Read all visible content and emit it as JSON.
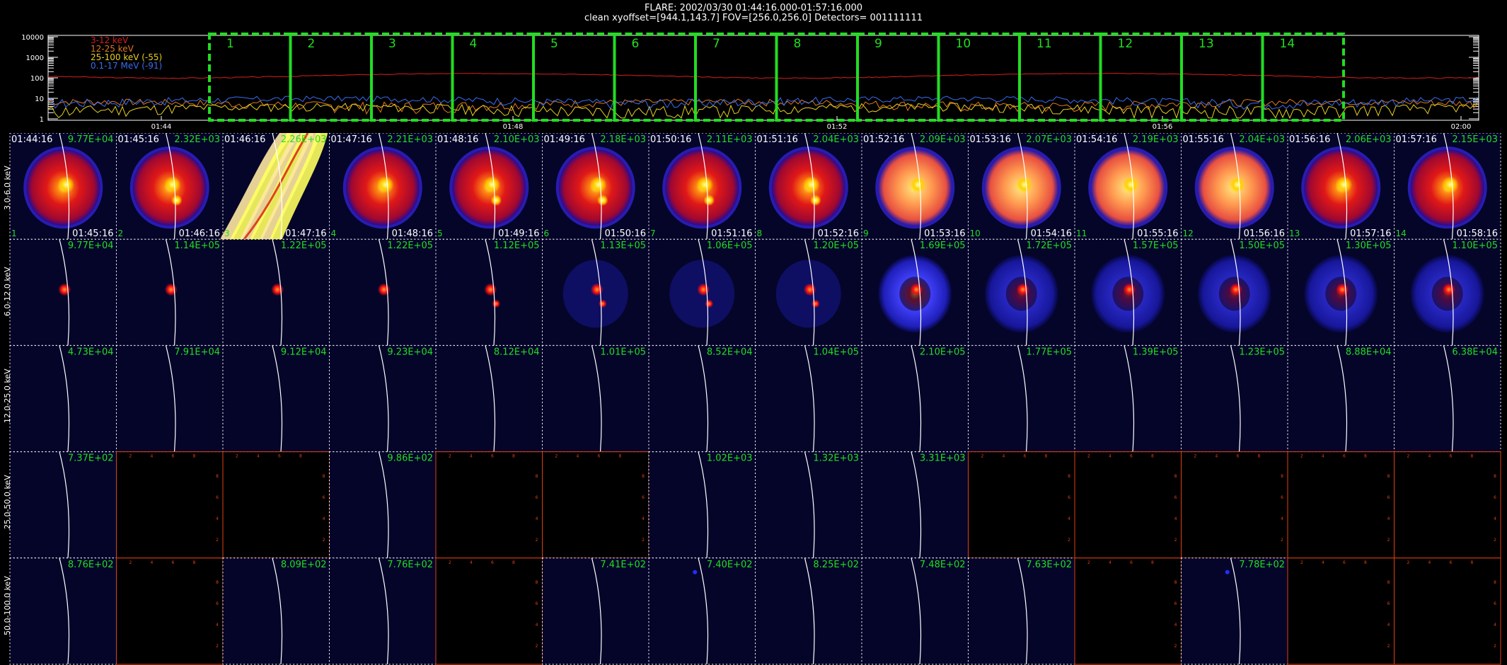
{
  "header": {
    "title": "FLARE: 2002/03/30 01:44:16.000-01:57:16.000",
    "subtitle": "clean    xyoffset=[944.1,143.7]     FOV=[256.0,256.0]     Detectors= 001111111"
  },
  "lightcurve": {
    "y_ticks": [
      "10000",
      "1000",
      "100",
      "10",
      "1"
    ],
    "x_ticks": [
      "01:44",
      "01:48",
      "01:52",
      "01:56",
      "02:00"
    ],
    "legend": [
      {
        "label": "3-12 keV",
        "color": "#d81e1e"
      },
      {
        "label": "12-25 keV",
        "color": "#e07820"
      },
      {
        "label": "25-100 keV (-55)",
        "color": "#e8d020"
      },
      {
        "label": "0.1-17 MeV (-91)",
        "color": "#3a6cf0"
      }
    ],
    "intervals": [
      "1",
      "2",
      "3",
      "4",
      "5",
      "6",
      "7",
      "8",
      "9",
      "10",
      "11",
      "12",
      "13",
      "14"
    ],
    "interval_color": "#22dd22"
  },
  "rows": [
    {
      "label": "3.0-6.0 keV",
      "maxima": [
        "9.77E+04",
        "2.32E+03",
        "2.26E+03",
        "2.21E+03",
        "2.10E+03",
        "2.18E+03",
        "2.11E+03",
        "2.04E+03",
        "2.09E+03",
        "2.07E+03",
        "2.19E+03",
        "2.04E+03",
        "2.06E+03",
        "2.15E+03"
      ]
    },
    {
      "label": "6.0-12.0 keV",
      "maxima": [
        "9.77E+04",
        "1.14E+05",
        "1.22E+05",
        "1.22E+05",
        "1.12E+05",
        "1.13E+05",
        "1.06E+05",
        "1.20E+05",
        "1.69E+05",
        "1.72E+05",
        "1.57E+05",
        "1.50E+05",
        "1.30E+05",
        "1.10E+05"
      ]
    },
    {
      "label": "12.0-25.0 keV",
      "maxima": [
        "4.73E+04",
        "7.91E+04",
        "9.12E+04",
        "9.23E+04",
        "8.12E+04",
        "1.01E+05",
        "8.52E+04",
        "1.04E+05",
        "2.10E+05",
        "1.77E+05",
        "1.39E+05",
        "1.23E+05",
        "8.88E+04",
        "6.38E+04"
      ]
    },
    {
      "label": "25.0-50.0 keV",
      "maxima": [
        "7.37E+02",
        "",
        "",
        "9.86E+02",
        "",
        "",
        "1.02E+03",
        "1.32E+03",
        "3.31E+03",
        "",
        "",
        "",
        "",
        ""
      ]
    },
    {
      "label": "50.0-100.0 keV",
      "maxima": [
        "8.76E+02",
        "",
        "8.09E+02",
        "7.76E+02",
        "",
        "7.41E+02",
        "7.40E+02",
        "8.25E+02",
        "7.48E+02",
        "7.63E+02",
        "",
        "7.78E+02",
        "",
        ""
      ]
    }
  ],
  "start_times": [
    "01:44:16",
    "01:45:16",
    "01:46:16",
    "01:47:16",
    "01:48:16",
    "01:49:16",
    "01:50:16",
    "01:51:16",
    "01:52:16",
    "01:53:16",
    "01:54:16",
    "01:55:16",
    "01:56:16",
    "01:57:16"
  ],
  "end_times": [
    "01:45:16",
    "01:46:16",
    "01:47:16",
    "01:48:16",
    "01:49:16",
    "01:50:16",
    "01:51:16",
    "01:52:16",
    "01:53:16",
    "01:54:16",
    "01:55:16",
    "01:56:16",
    "01:57:16",
    "01:58:16"
  ],
  "panel_numbers": [
    "1",
    "2",
    "3",
    "4",
    "5",
    "6",
    "7",
    "8",
    "9",
    "10",
    "11",
    "12",
    "13",
    "14"
  ],
  "empty_axis_ticks": [
    "2",
    "4",
    "6",
    "8"
  ],
  "colors": {
    "label_green": "#22dd22",
    "axis_orange": "#e04010",
    "limb": "#ffffff",
    "dark_blue": "#05052a"
  }
}
